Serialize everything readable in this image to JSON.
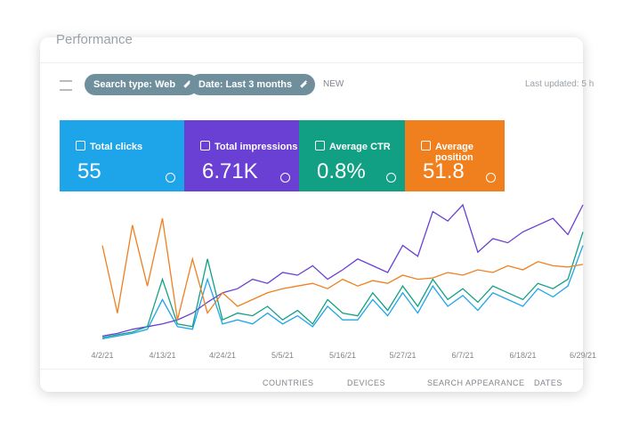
{
  "header": {
    "title": "Performance",
    "filters": [
      "Search type: Web",
      "Date: Last 3 months"
    ],
    "new_button": "NEW",
    "last_updated": "Last updated: 5 h"
  },
  "chart_data": {
    "type": "line",
    "categories": [
      "4/2/21",
      null,
      null,
      null,
      "4/13/21",
      null,
      null,
      null,
      "4/24/21",
      null,
      null,
      null,
      "5/5/21",
      null,
      null,
      null,
      "5/16/21",
      null,
      null,
      null,
      "5/27/21",
      null,
      null,
      null,
      "6/7/21",
      null,
      null,
      null,
      "6/18/21",
      null,
      null,
      null,
      "6/29/21"
    ],
    "ylim": [
      0,
      100
    ],
    "series": [
      {
        "name": "Total clicks",
        "total": "55",
        "color": "#1ea5e9",
        "values": [
          1,
          3,
          5,
          8,
          30,
          10,
          8,
          45,
          12,
          15,
          12,
          20,
          12,
          18,
          10,
          25,
          15,
          15,
          30,
          18,
          35,
          20,
          40,
          25,
          33,
          22,
          35,
          30,
          25,
          38,
          32,
          40,
          70
        ]
      },
      {
        "name": "Total impressions",
        "total": "6.71K",
        "color": "#6a3fd4",
        "values": [
          3,
          5,
          8,
          10,
          12,
          15,
          20,
          28,
          35,
          38,
          45,
          42,
          50,
          48,
          55,
          45,
          52,
          60,
          55,
          50,
          70,
          62,
          95,
          88,
          100,
          65,
          75,
          72,
          80,
          85,
          90,
          78,
          100
        ]
      },
      {
        "name": "Average CTR",
        "total": "0.8%",
        "color": "#12a085",
        "values": [
          2,
          4,
          6,
          10,
          45,
          12,
          10,
          60,
          15,
          20,
          18,
          25,
          15,
          22,
          12,
          30,
          20,
          18,
          35,
          22,
          40,
          25,
          45,
          30,
          38,
          28,
          40,
          35,
          30,
          42,
          38,
          45,
          80
        ]
      },
      {
        "name": "Average position",
        "total": "51.8",
        "color": "#f07f1e",
        "values": [
          70,
          20,
          85,
          40,
          90,
          15,
          60,
          20,
          35,
          25,
          30,
          35,
          38,
          40,
          42,
          38,
          45,
          40,
          44,
          42,
          48,
          45,
          46,
          50,
          48,
          52,
          50,
          55,
          52,
          58,
          55,
          54,
          56
        ]
      }
    ]
  },
  "tabs": [
    "COUNTRIES",
    "DEVICES",
    "SEARCH APPEARANCE",
    "DATES"
  ]
}
